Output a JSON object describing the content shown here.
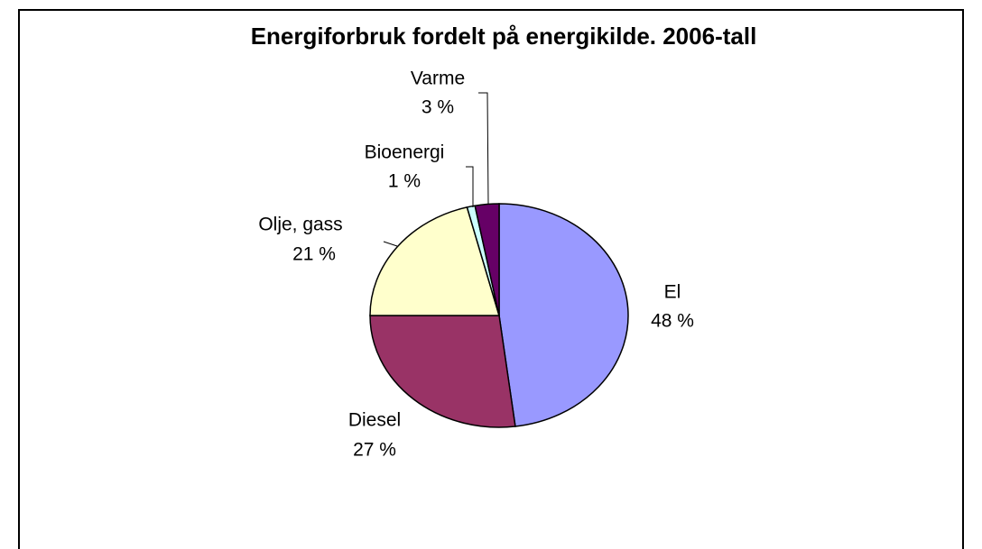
{
  "chart_data": {
    "type": "pie",
    "title": "Energiforbruk fordelt på energikilde. 2006-tall",
    "categories": [
      "El",
      "Diesel",
      "Olje, gass",
      "Bioenergi",
      "Varme"
    ],
    "values": [
      48,
      27,
      21,
      1,
      3
    ],
    "value_labels": [
      "48 %",
      "27 %",
      "21 %",
      "1 %",
      "3 %"
    ],
    "colors": [
      "#9999ff",
      "#993366",
      "#ffffcc",
      "#ccffff",
      "#660066"
    ]
  }
}
